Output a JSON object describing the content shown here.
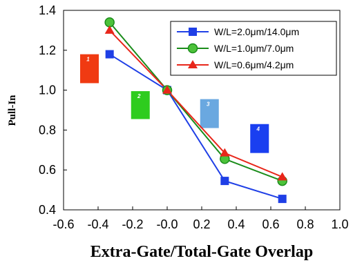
{
  "chart_data": {
    "type": "line",
    "xlabel": "Extra-Gate/Total-Gate Overlap",
    "ylabel": "Pull-In",
    "xlim": [
      -0.6,
      1.0
    ],
    "ylim": [
      0.4,
      1.4
    ],
    "xticks": [
      "-0.6",
      "-0.4",
      "-0.2",
      "-0.0",
      "0.2",
      "0.4",
      "0.6",
      "0.8",
      "1.0"
    ],
    "yticks": [
      "0.4",
      "0.6",
      "0.8",
      "1.0",
      "1.2",
      "1.4"
    ],
    "grid": false,
    "legend_position": "top-right",
    "x": [
      -0.3333,
      0.0,
      0.3333,
      0.6667
    ],
    "series": [
      {
        "name": "W/L=2.0μm/14.0μm",
        "marker": "square",
        "color": "#1f3fe6",
        "values": [
          1.18,
          1.0,
          0.545,
          0.455
        ]
      },
      {
        "name": "W/L=1.0μm/7.0μm",
        "marker": "circle",
        "color": "#1a8c1a",
        "markerFill": "#4cc23a",
        "values": [
          1.34,
          1.0,
          0.655,
          0.545
        ]
      },
      {
        "name": "W/L=0.6μm/4.2μm",
        "marker": "triangle",
        "color": "#e8261a",
        "values": [
          1.3,
          1.0,
          0.685,
          0.565
        ]
      }
    ],
    "annotations": [
      {
        "label": "1",
        "color": "#f03a12",
        "x": -0.45,
        "y_top": 1.18,
        "y_bottom": 1.035
      },
      {
        "label": "2",
        "color": "#2ecc1e",
        "x": -0.155,
        "y_top": 0.995,
        "y_bottom": 0.855
      },
      {
        "label": "3",
        "color": "#6aa8e0",
        "x": 0.245,
        "y_top": 0.955,
        "y_bottom": 0.81
      },
      {
        "label": "4",
        "color": "#1a3ff0",
        "x": 0.535,
        "y_top": 0.83,
        "y_bottom": 0.685
      }
    ]
  }
}
